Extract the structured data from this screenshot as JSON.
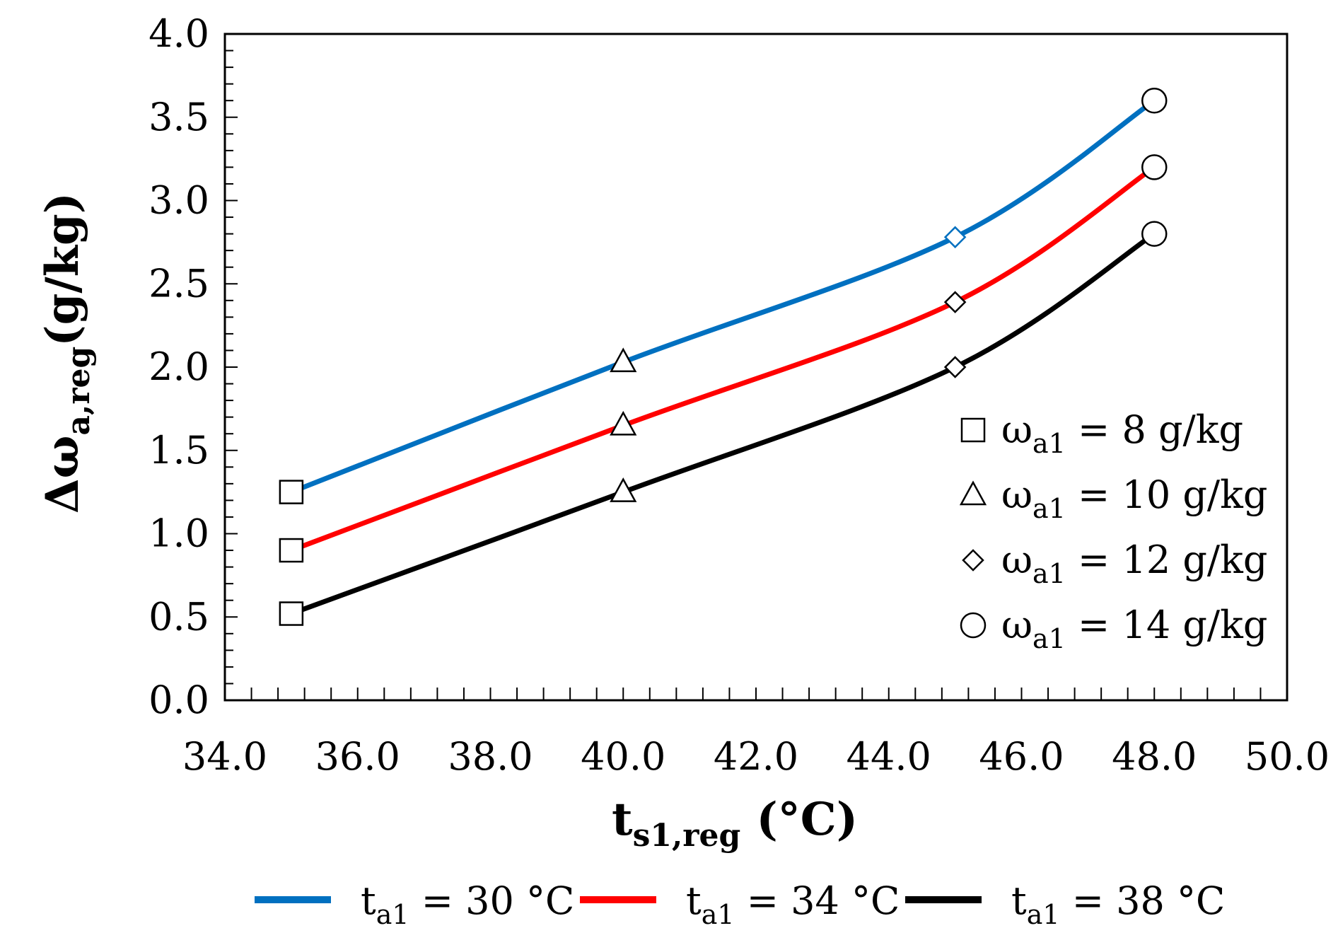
{
  "chart_data": {
    "type": "line",
    "x": [
      35,
      40,
      45,
      48
    ],
    "series": [
      {
        "name": "t_a1 = 30 °C",
        "label_main": "t",
        "label_sub": "a1",
        "label_rest": " = 30 °C",
        "color": "#0070c0",
        "values": [
          1.25,
          2.03,
          2.78,
          3.6
        ]
      },
      {
        "name": "t_a1 = 34 °C",
        "label_main": "t",
        "label_sub": "a1",
        "label_rest": " = 34 °C",
        "color": "#ff0000",
        "values": [
          0.9,
          1.65,
          2.39,
          3.2
        ]
      },
      {
        "name": "t_a1 = 38 °C",
        "label_main": "t",
        "label_sub": "a1",
        "label_rest": " = 38 °C",
        "color": "#000000",
        "values": [
          0.52,
          1.25,
          2.0,
          2.8
        ]
      }
    ],
    "markers": [
      {
        "shape": "square",
        "x": 35,
        "label_main": "ω",
        "label_sub": "a1",
        "label_rest": " = 8 g/kg"
      },
      {
        "shape": "triangle",
        "x": 40,
        "label_main": "ω",
        "label_sub": "a1",
        "label_rest": " = 10 g/kg"
      },
      {
        "shape": "diamond",
        "x": 45,
        "label_main": "ω",
        "label_sub": "a1",
        "label_rest": " = 12 g/kg"
      },
      {
        "shape": "circle",
        "x": 48,
        "label_main": "ω",
        "label_sub": "a1",
        "label_rest": " = 14 g/kg"
      }
    ],
    "xlabel": {
      "main": "t",
      "sub": "s1,reg",
      "rest": " (°C)"
    },
    "ylabel": {
      "main": "Δω",
      "sub": "a,reg",
      "rest": "(g/kg)"
    },
    "xlim": [
      34,
      50
    ],
    "ylim": [
      0,
      4
    ],
    "xticks": [
      "34.0",
      "36.0",
      "38.0",
      "40.0",
      "42.0",
      "44.0",
      "46.0",
      "48.0",
      "50.0"
    ],
    "yticks": [
      "0.0",
      "0.5",
      "1.0",
      "1.5",
      "2.0",
      "2.5",
      "3.0",
      "3.5",
      "4.0"
    ],
    "grid": false
  }
}
